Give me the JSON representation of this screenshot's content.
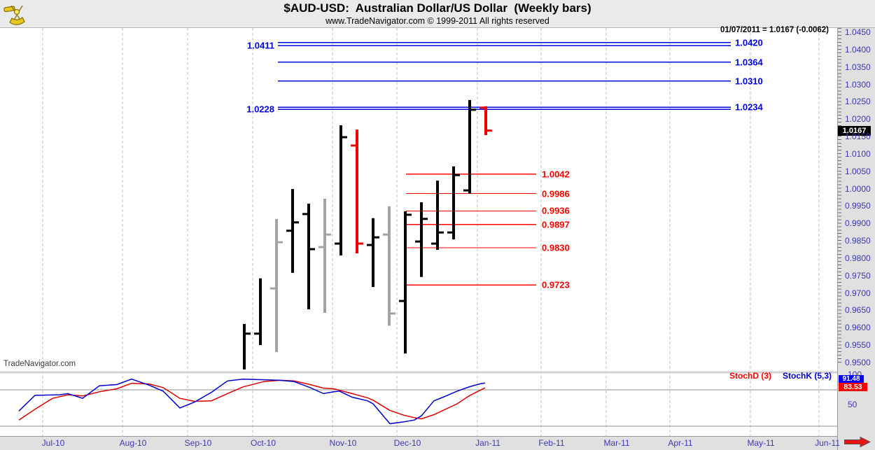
{
  "header": {
    "title": "$AUD-USD:  Australian Dollar/US Dollar  (Weekly bars)",
    "subtitle": "www.TradeNavigator.com © 1999-2011 All rights reserved",
    "logo_icon": "sextant-logo-icon"
  },
  "quote_info": "01/07/2011 = 1.0167 (-0.0062)",
  "watermark": "TradeNavigator.com",
  "colors": {
    "blue_line": "#0000dd",
    "blue_label": "#0000e6",
    "red_line": "#ff0000",
    "bar_black": "#000000",
    "bar_gray": "#a3a3a3",
    "bar_red": "#ee0000",
    "axis_text": "#3a3aad",
    "stoch_k": "#0000cc",
    "stoch_d": "#dd0000",
    "k_box_bg": "#0000ee",
    "d_box_bg": "#ff0000",
    "last_price_bg": "#000000",
    "gridline": "#c2c2c2",
    "stoch_level": "#8f8f8f"
  },
  "chart_data": {
    "type": "ohlc-bar",
    "title": "$AUD-USD:  Australian Dollar/US Dollar  (Weekly bars)",
    "price_axis": {
      "min": 0.95,
      "max": 1.045,
      "step": 0.005,
      "labels": [
        "1.0450",
        "1.0400",
        "1.0350",
        "1.0300",
        "1.0250",
        "1.0200",
        "1.0150",
        "1.0100",
        "1.0050",
        "1.0000",
        "0.9950",
        "0.9900",
        "0.9850",
        "0.9800",
        "0.9750",
        "0.9700",
        "0.9650",
        "0.9600",
        "0.9550",
        "0.9500"
      ],
      "last_price": "1.0167"
    },
    "x_axis": {
      "months": [
        "Jul-10",
        "Aug-10",
        "Sep-10",
        "Oct-10",
        "Nov-10",
        "Dec-10",
        "Jan-11",
        "Feb-11",
        "Mar-11",
        "Apr-11",
        "May-11",
        "Jun-11"
      ]
    },
    "bars": [
      {
        "o": null,
        "h": 0.9611,
        "l": 0.948,
        "c": 0.9583,
        "color": "black"
      },
      {
        "o": 0.9583,
        "h": 0.9742,
        "l": 0.955,
        "c": null,
        "color": "black"
      },
      {
        "o": 0.9713,
        "h": 0.9913,
        "l": 0.953,
        "c": 0.9846,
        "color": "gray"
      },
      {
        "o": 0.9879,
        "h": 0.9999,
        "l": 0.9758,
        "c": 0.9903,
        "color": "black"
      },
      {
        "o": 0.9927,
        "h": 0.9957,
        "l": 0.9653,
        "c": 0.9826,
        "color": "black"
      },
      {
        "o": 0.9832,
        "h": 0.9971,
        "l": 0.9643,
        "c": 0.9868,
        "color": "gray"
      },
      {
        "o": 0.9842,
        "h": 1.0182,
        "l": 0.9808,
        "c": 1.0148,
        "color": "black"
      },
      {
        "o": 1.0124,
        "h": 1.017,
        "l": 0.9814,
        "c": 0.9842,
        "color": "red"
      },
      {
        "o": 0.9838,
        "h": 0.9915,
        "l": 0.9717,
        "c": 0.986,
        "color": "black"
      },
      {
        "o": 0.9868,
        "h": 0.9949,
        "l": 0.9606,
        "c": 0.9641,
        "color": "gray"
      },
      {
        "o": 0.9677,
        "h": 0.9935,
        "l": 0.9526,
        "c": 0.9925,
        "color": "black"
      },
      {
        "o": 0.9848,
        "h": 0.9961,
        "l": 0.9746,
        "c": 0.9913,
        "color": "black"
      },
      {
        "o": 0.9842,
        "h": 1.0023,
        "l": 0.9824,
        "c": 0.9874,
        "color": "black"
      },
      {
        "o": 0.9874,
        "h": 1.0064,
        "l": 0.9854,
        "c": 1.0039,
        "color": "black"
      },
      {
        "o": 0.9995,
        "h": 1.0255,
        "l": 0.9985,
        "c": 1.0227,
        "color": "black"
      },
      {
        "o": 1.0233,
        "h": 1.0237,
        "l": 1.0154,
        "c": 1.0167,
        "color": "red"
      }
    ],
    "blue_levels": [
      {
        "value": 1.042,
        "label": "1.0420",
        "side": "right"
      },
      {
        "value": 1.0411,
        "label": "1.0411",
        "side": "left"
      },
      {
        "value": 1.0364,
        "label": "1.0364",
        "side": "right"
      },
      {
        "value": 1.031,
        "label": "1.0310",
        "side": "right"
      },
      {
        "value": 1.0234,
        "label": "1.0234",
        "side": "right"
      },
      {
        "value": 1.0228,
        "label": "1.0228",
        "side": "left"
      }
    ],
    "red_levels": [
      {
        "value": 1.0042,
        "label": "1.0042"
      },
      {
        "value": 0.9986,
        "label": "0.9986"
      },
      {
        "value": 0.9936,
        "label": "0.9936"
      },
      {
        "value": 0.9897,
        "label": "0.9897"
      },
      {
        "value": 0.983,
        "label": "0.9830"
      },
      {
        "value": 0.9723,
        "label": "0.9723"
      }
    ],
    "stochastic": {
      "legend_d": "StochD (3)",
      "legend_k": "StochK (5,3)",
      "k_last": "91.48",
      "d_last": "83.53",
      "scale_labels": [
        "100",
        "50"
      ],
      "overbought": 80,
      "oversold": 20,
      "k": [
        [
          27,
          45
        ],
        [
          50,
          71
        ],
        [
          85,
          72
        ],
        [
          97,
          74
        ],
        [
          118,
          66
        ],
        [
          142,
          87
        ],
        [
          167,
          89
        ],
        [
          188,
          98
        ],
        [
          213,
          88
        ],
        [
          233,
          78
        ],
        [
          257,
          50
        ],
        [
          278,
          60
        ],
        [
          302,
          76
        ],
        [
          325,
          95
        ],
        [
          347,
          98
        ],
        [
          377,
          97
        ],
        [
          400,
          96
        ],
        [
          420,
          94
        ],
        [
          443,
          84
        ],
        [
          462,
          74
        ],
        [
          477,
          77
        ],
        [
          485,
          78
        ],
        [
          503,
          68
        ],
        [
          525,
          62
        ],
        [
          533,
          57
        ],
        [
          557,
          24
        ],
        [
          577,
          27
        ],
        [
          592,
          30
        ],
        [
          602,
          37
        ],
        [
          620,
          62
        ],
        [
          633,
          68
        ],
        [
          653,
          78
        ],
        [
          670,
          85
        ],
        [
          685,
          90
        ],
        [
          693,
          91.5
        ]
      ],
      "d": [
        [
          27,
          30
        ],
        [
          50,
          48
        ],
        [
          75,
          66
        ],
        [
          97,
          72
        ],
        [
          118,
          70
        ],
        [
          142,
          77
        ],
        [
          167,
          82
        ],
        [
          188,
          91
        ],
        [
          213,
          90
        ],
        [
          233,
          84
        ],
        [
          257,
          66
        ],
        [
          278,
          61
        ],
        [
          302,
          62
        ],
        [
          325,
          74
        ],
        [
          347,
          85
        ],
        [
          377,
          94
        ],
        [
          400,
          96
        ],
        [
          420,
          95
        ],
        [
          443,
          89
        ],
        [
          462,
          83
        ],
        [
          477,
          82
        ],
        [
          503,
          74
        ],
        [
          525,
          67
        ],
        [
          533,
          63
        ],
        [
          557,
          46
        ],
        [
          577,
          38
        ],
        [
          592,
          34
        ],
        [
          602,
          32
        ],
        [
          620,
          39
        ],
        [
          633,
          46
        ],
        [
          653,
          57
        ],
        [
          670,
          70
        ],
        [
          685,
          79
        ],
        [
          693,
          83.5
        ]
      ]
    }
  }
}
